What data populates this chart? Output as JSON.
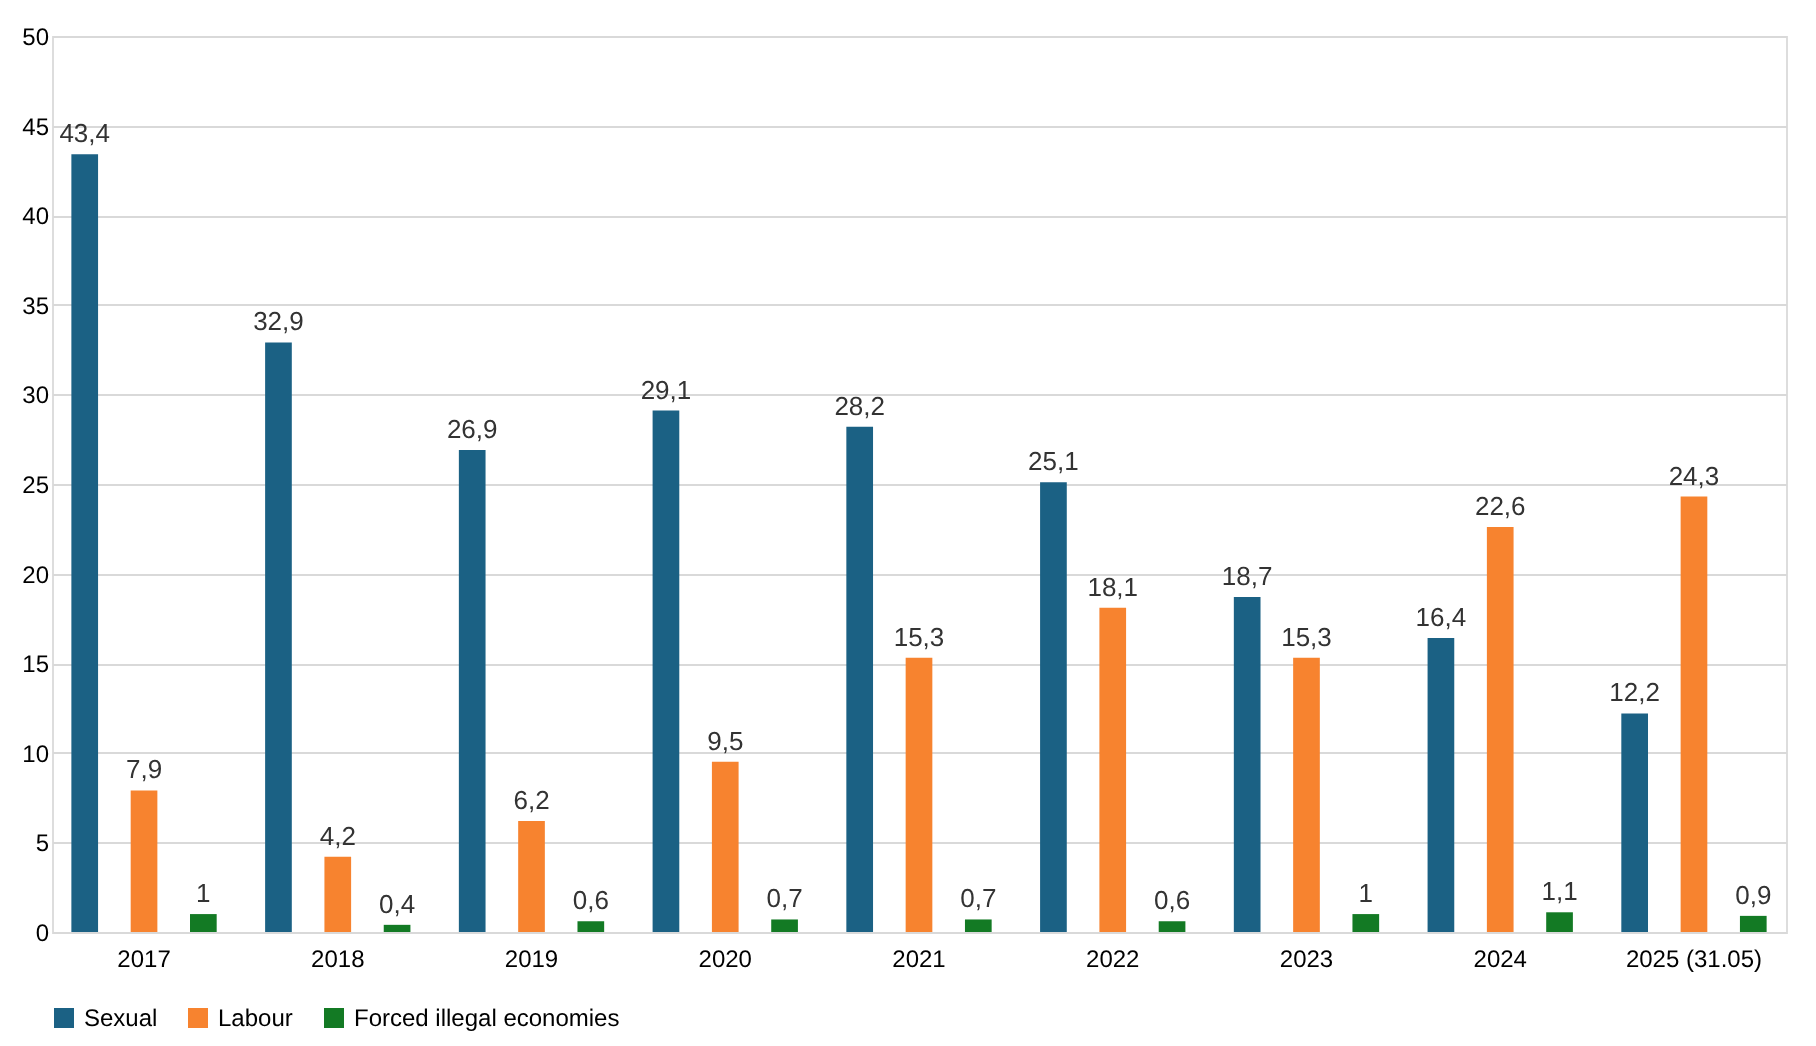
{
  "chart_data": {
    "type": "bar",
    "categories": [
      "2017",
      "2018",
      "2019",
      "2020",
      "2021",
      "2022",
      "2023",
      "2024",
      "2025 (31.05)"
    ],
    "series": [
      {
        "name": "Sexual",
        "color": "#1b6184",
        "values": [
          43.4,
          32.9,
          26.9,
          29.1,
          28.2,
          25.1,
          18.7,
          16.4,
          12.2
        ],
        "value_labels": [
          "43,4",
          "32,9",
          "26,9",
          "29,1",
          "28,2",
          "25,1",
          "18,7",
          "16,4",
          "12,2"
        ]
      },
      {
        "name": "Labour",
        "color": "#f7832f",
        "values": [
          7.9,
          4.2,
          6.2,
          9.5,
          15.3,
          18.1,
          15.3,
          22.6,
          24.3
        ],
        "value_labels": [
          "7,9",
          "4,2",
          "6,2",
          "9,5",
          "15,3",
          "18,1",
          "15,3",
          "22,6",
          "24,3"
        ]
      },
      {
        "name": "Forced illegal economies",
        "color": "#137a24",
        "values": [
          1,
          0.4,
          0.6,
          0.7,
          0.7,
          0.6,
          1,
          1.1,
          0.9
        ],
        "value_labels": [
          "1",
          "0,4",
          "0,6",
          "0,7",
          "0,7",
          "0,6",
          "1",
          "1,1",
          "0,9"
        ]
      }
    ],
    "ylim": [
      0,
      50
    ],
    "yticks": [
      0,
      5,
      10,
      15,
      20,
      25,
      30,
      35,
      40,
      45,
      50
    ],
    "grid": "y",
    "legend": "bottom"
  }
}
